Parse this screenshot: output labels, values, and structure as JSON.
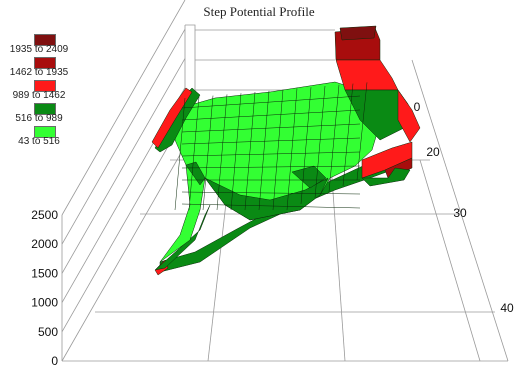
{
  "chart_data": {
    "type": "surface3d",
    "title": "Step Potential Profile",
    "z_ticks": [
      "0",
      "500",
      "1000",
      "1500",
      "2000",
      "2500"
    ],
    "depth_ticks": [
      "0",
      "20",
      "30",
      "40"
    ],
    "zlim": [
      0,
      2500
    ],
    "legend": [
      {
        "label": "1935 to 2409",
        "color": "#7f1010",
        "range": [
          1935,
          2409
        ]
      },
      {
        "label": "1462 to 1935",
        "color": "#a80d0d",
        "range": [
          1462,
          1935
        ]
      },
      {
        "label": "989 to 1462",
        "color": "#ff1a1a",
        "range": [
          989,
          1462
        ]
      },
      {
        "label": "516 to 989",
        "color": "#0a8a14",
        "range": [
          516,
          989
        ]
      },
      {
        "label": "43 to 516",
        "color": "#33ff33",
        "range": [
          43,
          516
        ]
      }
    ],
    "grid": true,
    "legend_position": "top-left"
  }
}
